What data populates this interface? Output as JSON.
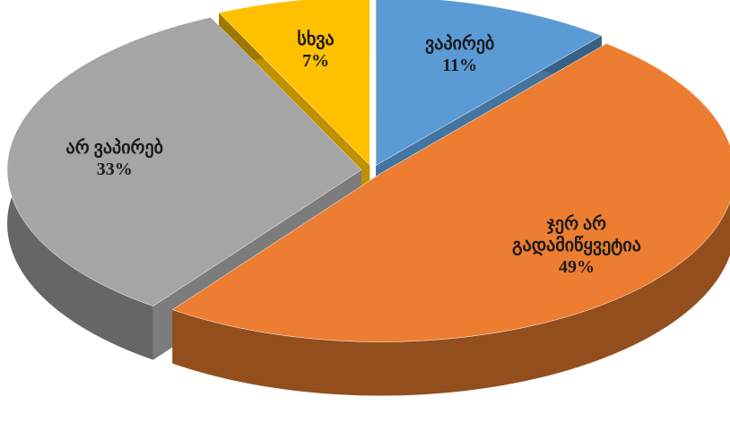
{
  "chart_data": {
    "type": "pie3d",
    "categories": [
      "ვაპირებ",
      "ჯერ არ გადამიწყვეტია",
      "არ ვაპირებ",
      "სხვა"
    ],
    "values": [
      11,
      49,
      33,
      7
    ],
    "value_labels": [
      "11%",
      "49%",
      "33%",
      "7%"
    ],
    "colors": [
      "#5b9bd5",
      "#ed7d31",
      "#a5a5a5",
      "#ffc000"
    ]
  }
}
